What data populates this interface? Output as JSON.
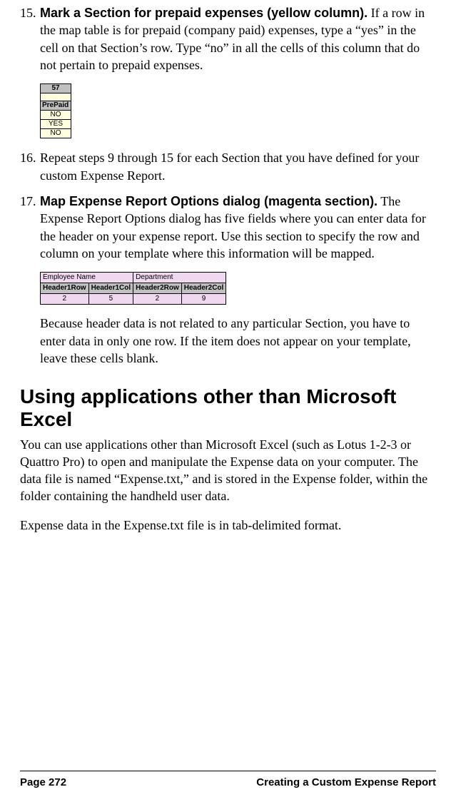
{
  "steps": {
    "s15": {
      "num": "15.",
      "bold": "Mark a Section for prepaid expenses (yellow column).",
      "text": " If a row in the map table is for prepaid (company paid) expenses, type a “yes” in the cell on that Section’s row. Type “no” in all the cells of this column that do not pertain to prepaid expenses."
    },
    "s16": {
      "num": "16.",
      "text": "Repeat steps 9 through 15 for each Section that you have defined for your custom Expense Report."
    },
    "s17": {
      "num": "17.",
      "bold": "Map Expense Report Options dialog (magenta section).",
      "text": " The Expense Report Options dialog has five fields where you can enter data for the header on your expense report. Use this section to specify the row and column on your template where this information will be mapped.",
      "after": "Because header data is not related to any particular Section, you have to enter data in only one row. If the item does not appear on your template, leave these cells blank."
    }
  },
  "fig_prepaid": {
    "col_num": "57",
    "header": "PrePaid",
    "rows": [
      "NO",
      "YES",
      "NO"
    ],
    "cell_bg": "#ffffe0",
    "header_bg": "#c0c0c0"
  },
  "fig_headermap": {
    "top_labels": [
      "Employee Name",
      "Department"
    ],
    "headers": [
      "Header1Row",
      "Header1Col",
      "Header2Row",
      "Header2Col"
    ],
    "values": [
      "2",
      "5",
      "2",
      "9"
    ],
    "cell_bg": "#f0d8f0",
    "header_bg": "#c0c0c0"
  },
  "section": {
    "heading": "Using applications other than Microsoft Excel",
    "p1": "You can use applications other than Microsoft Excel (such as Lotus 1-2-3 or Quattro Pro) to open and manipulate the Expense data on your computer. The data file is named “Expense.txt,” and is stored in the Expense folder, within the folder containing the handheld user data.",
    "p2": "Expense data in the Expense.txt file is in tab-delimited format."
  },
  "footer": {
    "left": "Page 272",
    "right": "Creating a Custom Expense Report"
  }
}
